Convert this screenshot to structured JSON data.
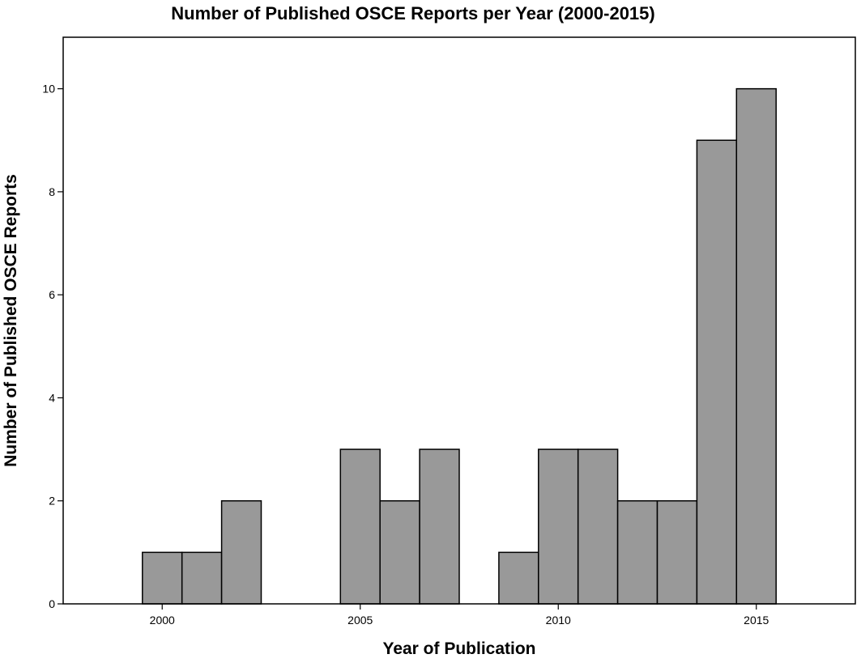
{
  "chart_data": {
    "type": "bar",
    "title": "Number of Published OSCE Reports per Year (2000-2015)",
    "xlabel": "Year of Publication",
    "ylabel": "Number of Published OSCE Reports",
    "x": [
      2000,
      2001,
      2002,
      2003,
      2004,
      2005,
      2006,
      2007,
      2008,
      2009,
      2010,
      2011,
      2012,
      2013,
      2014,
      2015
    ],
    "values": [
      1,
      1,
      2,
      0,
      0,
      3,
      2,
      3,
      0,
      1,
      3,
      3,
      2,
      2,
      9,
      10
    ],
    "x_ticks": [
      2000,
      2005,
      2010,
      2015
    ],
    "y_ticks": [
      0,
      2,
      4,
      6,
      8,
      10
    ],
    "xlim": [
      1997.5,
      2017.5
    ],
    "ylim": [
      0,
      11
    ],
    "bar_color": "#999999",
    "bar_edge_color": "#000000",
    "grid": false,
    "legend": "none"
  }
}
